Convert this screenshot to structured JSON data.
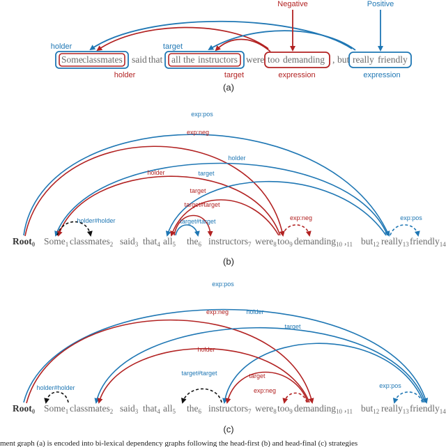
{
  "colors": {
    "blue": "#1f77b4",
    "red": "#b22222",
    "black": "#111111",
    "grey": "#6a6a6a"
  },
  "panel_a": {
    "words": [
      "Some",
      "classmates",
      "said",
      "that",
      "all",
      "the",
      "instructors",
      "were",
      "too",
      "demanding",
      ",",
      "but",
      "really",
      "friendly"
    ],
    "top_labels": {
      "negative": "Negative",
      "positive": "Positive"
    },
    "roles": {
      "holder_blue": "holder",
      "target_blue": "target",
      "holder_red": "holder",
      "target_red": "target",
      "expression_red": "expression",
      "expression_blue": "expression"
    },
    "caption": "(a)"
  },
  "panel_b": {
    "root": "Root",
    "root_sub": "0",
    "tokens": [
      {
        "w": "Some",
        "i": "1"
      },
      {
        "w": "classmates",
        "i": "2"
      },
      {
        "w": "said",
        "i": "3"
      },
      {
        "w": "that",
        "i": "4"
      },
      {
        "w": "all",
        "i": "5"
      },
      {
        "w": "the",
        "i": "6"
      },
      {
        "w": "instructors",
        "i": "7"
      },
      {
        "w": "were",
        "i": "8"
      },
      {
        "w": "too",
        "i": "9"
      },
      {
        "w": "demanding",
        "i": "10"
      },
      {
        "w": ",",
        "i": "11"
      },
      {
        "w": "but",
        "i": "12"
      },
      {
        "w": "really",
        "i": "13"
      },
      {
        "w": "friendly",
        "i": "14"
      }
    ],
    "arc_labels": {
      "exp_pos": "exp:pos",
      "exp_neg": "exp:neg",
      "holder_blue": "holder",
      "holder_red": "holder",
      "target_blue": "target",
      "target_red": "target",
      "target_target_1": "target#target",
      "target_target_2": "target#target",
      "holder_holder": "holder#holder",
      "exp_neg_dashed": "exp:neg",
      "exp_pos_dashed": "exp:pos"
    },
    "caption": "(b)"
  },
  "panel_c": {
    "root": "Root",
    "root_sub": "0",
    "tokens": [
      {
        "w": "Some",
        "i": "1"
      },
      {
        "w": "classmates",
        "i": "2"
      },
      {
        "w": "said",
        "i": "3"
      },
      {
        "w": "that",
        "i": "4"
      },
      {
        "w": "all",
        "i": "5"
      },
      {
        "w": "the",
        "i": "6"
      },
      {
        "w": "instructors",
        "i": "7"
      },
      {
        "w": "were",
        "i": "8"
      },
      {
        "w": "too",
        "i": "9"
      },
      {
        "w": "demanding",
        "i": "10"
      },
      {
        "w": ",",
        "i": "11"
      },
      {
        "w": "but",
        "i": "12"
      },
      {
        "w": "really",
        "i": "13"
      },
      {
        "w": "friendly",
        "i": "14"
      }
    ],
    "arc_labels": {
      "exp_pos": "exp:pos",
      "exp_neg": "exp:neg",
      "holder_blue": "holder",
      "target_blue": "target",
      "holder_red": "holder",
      "target_red": "target",
      "target_target": "target#target",
      "holder_holder": "holder#holder",
      "exp_neg_dashed": "exp:neg",
      "exp_pos_dashed": "exp:pos"
    },
    "caption": "(c)"
  },
  "figure_caption": "ment graph (a) is encoded into bi-lexical dependency graphs following the head-first (b) and head-final (c) strategies"
}
